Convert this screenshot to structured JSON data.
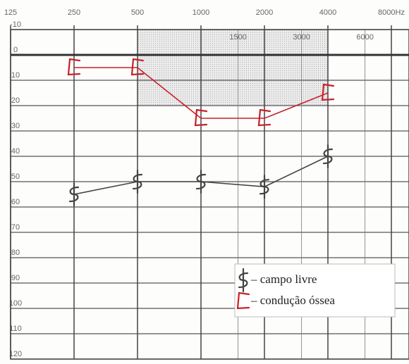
{
  "chart_data": {
    "type": "line",
    "x": [
      250,
      500,
      1000,
      2000,
      4000
    ],
    "series": [
      {
        "name": "– campo livre",
        "color": "#444444",
        "marker": "free",
        "values": [
          55,
          50,
          50,
          52,
          40
        ]
      },
      {
        "name": "– condução óssea",
        "color": "#c8202a",
        "marker": "bone",
        "values": [
          5,
          5,
          25,
          25,
          15
        ]
      }
    ],
    "xlim": [
      125,
      8000
    ],
    "xscale": "log",
    "xticks": [
      125,
      250,
      500,
      1000,
      2000,
      4000,
      {
        "value": 8000,
        "label": "8000Hz"
      }
    ],
    "xticks_minor": [
      1500,
      3000,
      6000
    ],
    "ylim": [
      -10,
      120
    ],
    "yreversed": true,
    "yticks": [
      -10,
      0,
      10,
      20,
      30,
      40,
      50,
      60,
      70,
      80,
      90,
      100,
      110,
      120
    ],
    "grid": true,
    "legend": "lower right"
  }
}
